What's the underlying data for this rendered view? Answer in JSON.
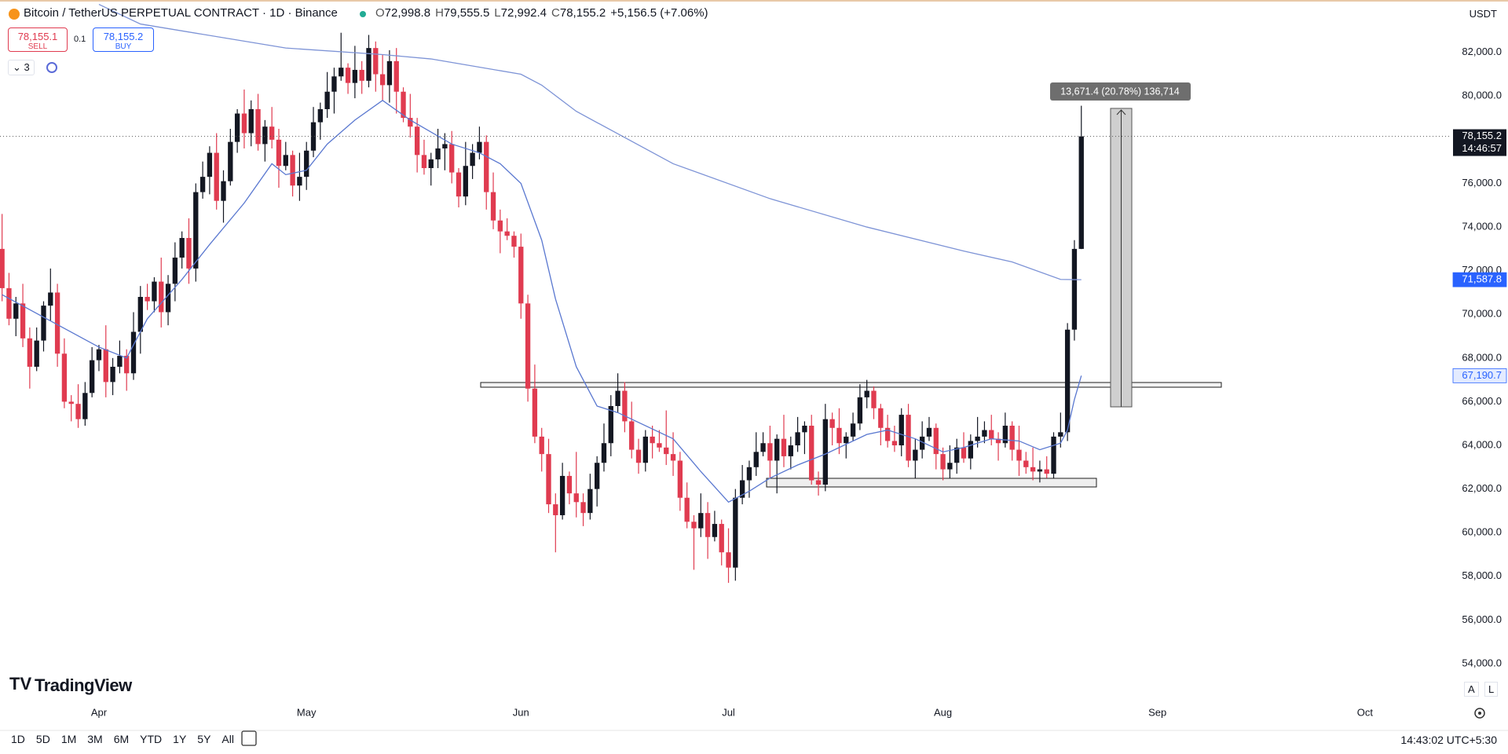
{
  "chart_data": {
    "type": "candlestick",
    "up_color": "#131722",
    "down_color": "#e03b50",
    "xlim": [
      -0.3,
      209.5
    ],
    "xticks": [
      {
        "value": 14,
        "label": "Apr"
      },
      {
        "value": 44,
        "label": "May"
      },
      {
        "value": 75,
        "label": "Jun"
      },
      {
        "value": 105,
        "label": "Jul"
      },
      {
        "value": 136,
        "label": "Aug"
      },
      {
        "value": 167,
        "label": "Sep"
      },
      {
        "value": 197,
        "label": "Oct"
      }
    ],
    "ylim": [
      52200,
      84400
    ],
    "yticks": [
      {
        "value": 54000,
        "label": "54,000.0"
      },
      {
        "value": 56000,
        "label": "56,000.0"
      },
      {
        "value": 58000,
        "label": "58,000.0"
      },
      {
        "value": 60000,
        "label": "60,000.0"
      },
      {
        "value": 62000,
        "label": "62,000.0"
      },
      {
        "value": 64000,
        "label": "64,000.0"
      },
      {
        "value": 66000,
        "label": "66,000.0"
      },
      {
        "value": 68000,
        "label": "68,000.0"
      },
      {
        "value": 70000,
        "label": "70,000.0"
      },
      {
        "value": 72000,
        "label": "72,000.0"
      },
      {
        "value": 74000,
        "label": "74,000.0"
      },
      {
        "value": 76000,
        "label": "76,000.0"
      },
      {
        "value": 78000,
        "label": "78,000.0"
      },
      {
        "value": 80000,
        "label": "80,000.0"
      },
      {
        "value": 82000,
        "label": "82,000.0"
      }
    ],
    "grid": false,
    "open": [
      73000,
      71200,
      69800,
      70500,
      68900,
      67600,
      68800,
      70400,
      71000,
      68200,
      66000,
      65900,
      65200,
      66400,
      67900,
      68400,
      66900,
      67600,
      68100,
      67300,
      69200,
      70800,
      70600,
      71500,
      70100,
      71400,
      72600,
      73500,
      72100,
      75600,
      76300,
      77400,
      75200,
      76100,
      77900,
      79200,
      78300,
      79400,
      77800,
      78600,
      78000,
      76800,
      77300,
      75900,
      76300,
      77500,
      78800,
      79400,
      80200,
      80900,
      81300,
      80600,
      81200,
      80700,
      82200,
      81000,
      80500,
      81600,
      80200,
      79000,
      78600,
      77300,
      76700,
      77100,
      77600,
      77800,
      76500,
      75400,
      76800,
      77400,
      77900,
      75600,
      74300,
      73800,
      73600,
      73100,
      70500,
      66600,
      64400,
      63600,
      61300,
      60800,
      62600,
      61800,
      61400,
      60900,
      62000,
      63200,
      64100,
      65800,
      66500,
      65100,
      63800,
      63200,
      64400,
      64100,
      63900,
      63600,
      63300,
      61600,
      60500,
      60200,
      60900,
      59800,
      60400,
      59100,
      58400,
      61600,
      62400,
      63000,
      63700,
      64100,
      63300,
      64300,
      63500,
      64000,
      64600,
      64900,
      62400,
      62200,
      65200,
      64800,
      64100,
      64400,
      65000,
      66200,
      66500,
      65700,
      64800,
      64200,
      64000,
      65400,
      63300,
      63800,
      64400,
      64800,
      63600,
      62900,
      63200,
      63900,
      63400,
      64200,
      64400,
      64700,
      64300,
      64100,
      64900,
      63800,
      63300,
      63000,
      62800,
      62900,
      62700,
      64400,
      64600,
      69300,
      72998.8
    ],
    "high": [
      74600,
      71900,
      70800,
      71400,
      69400,
      69400,
      70600,
      72100,
      71400,
      68900,
      66300,
      66800,
      66900,
      68500,
      68600,
      69500,
      68000,
      68800,
      68400,
      70100,
      71300,
      71400,
      71700,
      72600,
      71800,
      73300,
      73800,
      74400,
      76000,
      77000,
      77700,
      78300,
      76600,
      78500,
      79400,
      80300,
      79800,
      80100,
      78900,
      79500,
      78500,
      77900,
      77500,
      77400,
      77900,
      79500,
      79700,
      81100,
      81300,
      82900,
      81500,
      82300,
      81600,
      82800,
      82500,
      81900,
      82100,
      82200,
      80400,
      80100,
      79000,
      78000,
      77400,
      78500,
      78300,
      78400,
      76700,
      77900,
      77800,
      78600,
      78200,
      76500,
      74800,
      74400,
      73800,
      73700,
      70900,
      67700,
      64800,
      64300,
      61800,
      63200,
      62800,
      63700,
      61800,
      62700,
      63500,
      65000,
      66300,
      67300,
      66900,
      66000,
      64300,
      64700,
      64900,
      64700,
      65600,
      64600,
      63700,
      62300,
      60800,
      61800,
      61400,
      61000,
      60600,
      60200,
      62000,
      63100,
      63300,
      64600,
      64600,
      64900,
      64500,
      65400,
      64400,
      65300,
      65100,
      65400,
      62800,
      65900,
      65500,
      65700,
      64600,
      65500,
      66800,
      67000,
      66700,
      65900,
      65400,
      64900,
      65700,
      65900,
      64300,
      65100,
      65300,
      65000,
      63900,
      64000,
      64300,
      64600,
      64500,
      65300,
      65100,
      65400,
      64600,
      65500,
      65100,
      64900,
      63700,
      63900,
      63300,
      63500,
      64600,
      65500,
      69600,
      73400,
      79555.5
    ],
    "low": [
      70600,
      69500,
      69000,
      68500,
      66600,
      67400,
      68300,
      69700,
      67600,
      65700,
      65100,
      64800,
      64900,
      66200,
      67400,
      66200,
      66300,
      67300,
      66500,
      67000,
      68200,
      70200,
      70100,
      69400,
      69500,
      70600,
      72100,
      71400,
      71500,
      75300,
      75500,
      74800,
      74200,
      75900,
      77400,
      77600,
      77700,
      77500,
      77000,
      77600,
      75800,
      76600,
      75400,
      75200,
      75700,
      77200,
      78000,
      79000,
      79200,
      80700,
      80100,
      79900,
      80100,
      80400,
      80200,
      79800,
      79700,
      79200,
      78800,
      78100,
      76500,
      76400,
      75900,
      76700,
      76600,
      76000,
      74900,
      75000,
      76200,
      77100,
      74800,
      73900,
      72800,
      73400,
      72600,
      69800,
      66000,
      64100,
      62800,
      60900,
      59100,
      60600,
      61300,
      60700,
      60300,
      60600,
      61200,
      62800,
      63500,
      65500,
      64600,
      63400,
      62700,
      62800,
      63400,
      63700,
      63100,
      62600,
      61000,
      60200,
      58300,
      59800,
      58800,
      59600,
      58500,
      57700,
      57800,
      61300,
      61600,
      62600,
      63500,
      62500,
      61800,
      63000,
      62900,
      63700,
      63600,
      62200,
      61700,
      61900,
      64000,
      63600,
      63400,
      64200,
      64700,
      65700,
      65200,
      64000,
      63900,
      63700,
      63500,
      63000,
      62500,
      63400,
      64200,
      62900,
      62400,
      62500,
      62700,
      63200,
      62900,
      63900,
      64100,
      64000,
      63300,
      63900,
      63300,
      62600,
      62700,
      62400,
      62300,
      62500,
      62500,
      63900,
      64200,
      68800,
      72992.4
    ],
    "close": [
      71200,
      69800,
      70500,
      68900,
      67600,
      68800,
      70400,
      71000,
      68200,
      66000,
      65900,
      65200,
      66400,
      67900,
      68400,
      66900,
      67600,
      68100,
      67300,
      69200,
      70800,
      70600,
      71500,
      70100,
      71400,
      72600,
      73500,
      72100,
      75600,
      76300,
      77400,
      75200,
      76100,
      77900,
      79200,
      78300,
      79400,
      77800,
      78600,
      78000,
      76800,
      77300,
      75900,
      76300,
      77500,
      78800,
      79400,
      80200,
      80900,
      81300,
      80600,
      81200,
      80700,
      82200,
      81000,
      80500,
      81600,
      80200,
      79000,
      78600,
      77300,
      76700,
      77100,
      77600,
      77800,
      76500,
      75400,
      76800,
      77400,
      77900,
      75600,
      74300,
      73800,
      73600,
      73100,
      70500,
      66600,
      64400,
      63600,
      61300,
      60800,
      62600,
      61800,
      61400,
      60900,
      62000,
      63200,
      64100,
      65800,
      66500,
      65100,
      63800,
      63200,
      64400,
      64100,
      63900,
      63600,
      63300,
      61600,
      60500,
      60200,
      60900,
      59800,
      60400,
      59100,
      58400,
      61600,
      62400,
      63000,
      63700,
      64100,
      63300,
      64300,
      63500,
      64000,
      64600,
      64900,
      62400,
      62200,
      65200,
      64800,
      64100,
      64400,
      65000,
      66200,
      66500,
      65700,
      64800,
      64200,
      64000,
      65400,
      63300,
      63800,
      64400,
      64800,
      63600,
      62900,
      63200,
      63900,
      63400,
      64200,
      64400,
      64700,
      64300,
      64100,
      64900,
      63800,
      63300,
      63000,
      62800,
      62900,
      62700,
      64400,
      64600,
      69300,
      72998.8,
      78155.2
    ],
    "series": [
      {
        "color": "#5a78d0",
        "x": [
          0,
          14,
          18,
          21,
          26,
          30,
          35,
          39,
          41,
          44,
          47,
          51,
          55,
          59,
          65,
          69,
          72,
          75,
          78,
          80,
          83,
          86,
          89,
          91,
          97,
          101,
          105,
          108,
          111,
          115,
          119,
          125,
          128,
          132,
          136,
          139,
          143,
          147,
          150,
          153,
          154,
          155,
          156
        ],
        "values": [
          70900,
          68500,
          68000,
          69800,
          71600,
          73200,
          75100,
          76900,
          76400,
          76600,
          77800,
          78900,
          79800,
          78900,
          77800,
          77400,
          76900,
          76000,
          73400,
          70700,
          67600,
          65800,
          65500,
          65200,
          64300,
          62800,
          61400,
          61900,
          62500,
          63100,
          63600,
          64500,
          64700,
          64300,
          63700,
          63900,
          64300,
          64200,
          63800,
          64100,
          64700,
          66100,
          67190.7
        ]
      },
      {
        "color": "#7d93d6",
        "x": [
          14,
          20,
          41,
          55,
          62,
          75,
          78,
          83,
          97,
          111,
          125,
          139,
          146,
          153,
          156
        ],
        "values": [
          84200,
          83300,
          82200,
          81900,
          81700,
          81000,
          80500,
          79300,
          76900,
          75300,
          74000,
          72900,
          72400,
          71600,
          71587.8
        ]
      }
    ]
  },
  "ui": {
    "symbol": "Bitcoin / TetherUS PERPETUAL CONTRACT · 1D · Binance",
    "ohlc": [
      {
        "label": "O",
        "value": "72,998.8"
      },
      {
        "label": "H",
        "value": "79,555.5"
      },
      {
        "label": "L",
        "value": "72,992.4"
      },
      {
        "label": "C",
        "value": "78,155.2"
      }
    ],
    "change": "+5,156.5 (+7.06%)",
    "sell_price": "78,155.1",
    "sell": "SELL",
    "quantity": "0.1",
    "buy_price": "78,155.2",
    "buy": "BUY",
    "indicators": "3",
    "currency": "USDT",
    "last_price": "78,155.2",
    "countdown": "14:46:57",
    "ma_slow_label": "71,587.8",
    "ma_fast_label": "67,190.7",
    "measure": "13,671.4 (20.78%) 136,714",
    "logo": "TradingView",
    "ranges": [
      "1D",
      "5D",
      "1M",
      "3M",
      "6M",
      "YTD",
      "1Y",
      "5Y",
      "All"
    ],
    "scale_auto": "A",
    "scale_log": "L",
    "clock": "14:43:02 UTC+5:30"
  }
}
